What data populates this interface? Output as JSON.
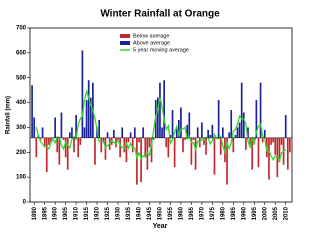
{
  "chart_data": {
    "type": "bar",
    "title": "Winter Rainfall at Orange",
    "x_label": "Year",
    "y_label": "Rainfall (mm)",
    "x": [
      1889,
      1890,
      1891,
      1892,
      1893,
      1894,
      1895,
      1896,
      1897,
      1898,
      1899,
      1900,
      1901,
      1902,
      1903,
      1904,
      1905,
      1906,
      1907,
      1908,
      1909,
      1910,
      1911,
      1912,
      1913,
      1914,
      1915,
      1916,
      1917,
      1918,
      1919,
      1920,
      1921,
      1922,
      1923,
      1924,
      1925,
      1926,
      1927,
      1928,
      1929,
      1930,
      1931,
      1932,
      1933,
      1934,
      1935,
      1936,
      1937,
      1938,
      1939,
      1940,
      1941,
      1942,
      1943,
      1944,
      1945,
      1946,
      1947,
      1948,
      1949,
      1950,
      1951,
      1952,
      1953,
      1954,
      1955,
      1956,
      1957,
      1958,
      1959,
      1960,
      1961,
      1962,
      1963,
      1964,
      1965,
      1966,
      1967,
      1968,
      1969,
      1970,
      1971,
      1972,
      1973,
      1974,
      1975,
      1976,
      1977,
      1978,
      1979,
      1980,
      1981,
      1982,
      1983,
      1984,
      1985,
      1986,
      1987,
      1988,
      1989,
      1990,
      1991,
      1992,
      1993,
      1994,
      1995,
      1996,
      1997,
      1998,
      1999,
      2000,
      2001,
      2002,
      2003,
      2004,
      2005,
      2006,
      2007,
      2008,
      2009,
      2010,
      2011,
      2012
    ],
    "average": 258,
    "series": [
      {
        "name": "Below average",
        "color": "#c1272d",
        "values": [
          null,
          null,
          180,
          null,
          250,
          null,
          220,
          120,
          230,
          240,
          null,
          null,
          200,
          150,
          null,
          250,
          180,
          130,
          null,
          null,
          200,
          null,
          180,
          230,
          null,
          null,
          null,
          null,
          null,
          null,
          150,
          null,
          null,
          200,
          240,
          170,
          null,
          210,
          230,
          null,
          220,
          250,
          180,
          null,
          200,
          160,
          240,
          null,
          200,
          null,
          70,
          240,
          80,
          null,
          180,
          130,
          220,
          160,
          250,
          null,
          null,
          null,
          null,
          null,
          220,
          180,
          null,
          null,
          140,
          null,
          null,
          null,
          200,
          250,
          null,
          null,
          150,
          250,
          130,
          null,
          220,
          null,
          230,
          190,
          null,
          null,
          null,
          110,
          null,
          null,
          190,
          null,
          160,
          70,
          null,
          null,
          200,
          null,
          null,
          null,
          null,
          null,
          210,
          null,
          220,
          130,
          250,
          null,
          140,
          null,
          240,
          null,
          180,
          90,
          230,
          240,
          190,
          100,
          160,
          230,
          150,
          null,
          130,
          200
        ]
      },
      {
        "name": "Above average",
        "color": "#1b2296",
        "values": [
          470,
          340,
          null,
          270,
          null,
          300,
          null,
          null,
          null,
          null,
          260,
          340,
          null,
          null,
          360,
          null,
          null,
          null,
          280,
          300,
          null,
          350,
          null,
          null,
          610,
          300,
          410,
          490,
          420,
          480,
          null,
          300,
          330,
          null,
          null,
          null,
          280,
          null,
          null,
          290,
          null,
          null,
          null,
          300,
          null,
          null,
          null,
          280,
          null,
          300,
          null,
          null,
          null,
          300,
          null,
          null,
          null,
          null,
          null,
          410,
          420,
          480,
          300,
          490,
          null,
          null,
          270,
          370,
          null,
          300,
          330,
          380,
          null,
          null,
          310,
          360,
          null,
          null,
          null,
          300,
          null,
          320,
          null,
          null,
          290,
          270,
          310,
          null,
          260,
          410,
          null,
          300,
          null,
          null,
          280,
          370,
          null,
          270,
          300,
          320,
          480,
          360,
          null,
          300,
          null,
          null,
          null,
          410,
          null,
          480,
          null,
          290,
          null,
          null,
          null,
          null,
          null,
          null,
          null,
          null,
          null,
          350,
          null,
          null
        ]
      },
      {
        "name": "5 year moving average",
        "color": "#33d633",
        "line": true,
        "values": [
          null,
          null,
          302,
          268,
          244,
          232,
          224,
          222,
          214,
          238,
          254,
          238,
          262,
          260,
          228,
          214,
          240,
          228,
          218,
          252,
          262,
          252,
          314,
          334,
          346,
          408,
          446,
          420,
          390,
          368,
          336,
          292,
          244,
          248,
          244,
          220,
          226,
          236,
          246,
          240,
          234,
          248,
          230,
          218,
          216,
          236,
          216,
          236,
          218,
          218,
          178,
          198,
          174,
          186,
          182,
          198,
          188,
          234,
          292,
          344,
          372,
          420,
          382,
          334,
          292,
          306,
          236,
          252,
          282,
          304,
          270,
          292,
          294,
          300,
          254,
          264,
          240,
          238,
          210,
          244,
          240,
          252,
          250,
          260,
          258,
          234,
          248,
          272,
          256,
          254,
          264,
          226,
          200,
          236,
          216,
          238,
          284,
          292,
          314,
          346,
          334,
          334,
          314,
          244,
          222,
          262,
          230,
          282,
          304,
          312,
          266,
          256,
          206,
          206,
          186,
          170,
          184,
          184,
          166,
          198,
          204,
          212,
          null,
          null
        ]
      }
    ],
    "xlim": [
      1888,
      2013
    ],
    "xticks": [
      1890,
      1895,
      1900,
      1905,
      1910,
      1915,
      1920,
      1925,
      1930,
      1935,
      1940,
      1945,
      1950,
      1955,
      1960,
      1965,
      1970,
      1975,
      1980,
      1985,
      1990,
      1995,
      2000,
      2005,
      2010
    ],
    "ylim": [
      0,
      700
    ],
    "yticks": [
      0,
      100,
      200,
      300,
      400,
      500,
      600,
      700
    ]
  }
}
